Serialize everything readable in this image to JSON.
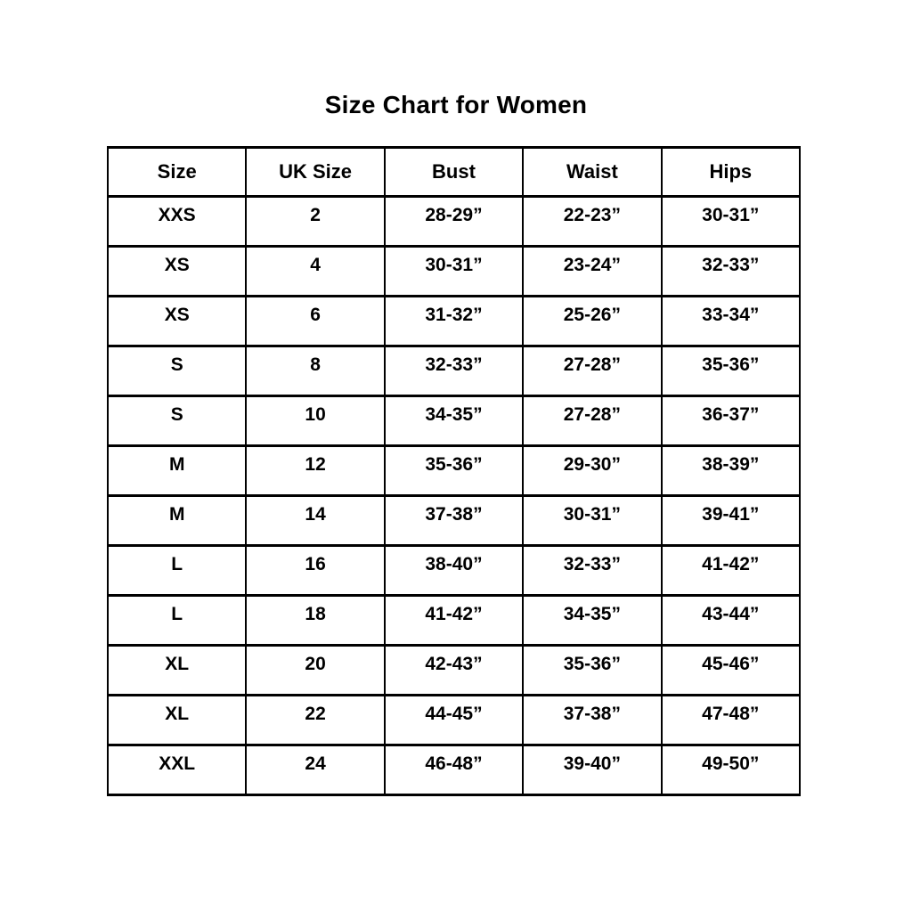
{
  "page": {
    "title": "Size Chart for Women"
  },
  "colors": {
    "background": "#ffffff",
    "text": "#000000",
    "border": "#000000"
  },
  "table": {
    "headers": [
      "Size",
      "UK Size",
      "Bust",
      "Waist",
      "Hips"
    ],
    "rows": [
      [
        "XXS",
        "2",
        "28-29”",
        "22-23”",
        "30-31”"
      ],
      [
        "XS",
        "4",
        "30-31”",
        "23-24”",
        "32-33”"
      ],
      [
        "XS",
        "6",
        "31-32”",
        "25-26”",
        "33-34”"
      ],
      [
        "S",
        "8",
        "32-33”",
        "27-28”",
        "35-36”"
      ],
      [
        "S",
        "10",
        "34-35”",
        "27-28”",
        "36-37”"
      ],
      [
        "M",
        "12",
        "35-36”",
        "29-30”",
        "38-39”"
      ],
      [
        "M",
        "14",
        "37-38”",
        "30-31”",
        "39-41”"
      ],
      [
        "L",
        "16",
        "38-40”",
        "32-33”",
        "41-42”"
      ],
      [
        "L",
        "18",
        "41-42”",
        "34-35”",
        "43-44”"
      ],
      [
        "XL",
        "20",
        "42-43”",
        "35-36”",
        "45-46”"
      ],
      [
        "XL",
        "22",
        "44-45”",
        "37-38”",
        "47-48”"
      ],
      [
        "XXL",
        "24",
        "46-48”",
        "39-40”",
        "49-50”"
      ]
    ]
  },
  "chart_data": {
    "type": "table",
    "title": "Size Chart for Women",
    "columns": [
      "Size",
      "UK Size",
      "Bust",
      "Waist",
      "Hips"
    ],
    "rows": [
      [
        "XXS",
        "2",
        "28-29”",
        "22-23”",
        "30-31”"
      ],
      [
        "XS",
        "4",
        "30-31”",
        "23-24”",
        "32-33”"
      ],
      [
        "XS",
        "6",
        "31-32”",
        "25-26”",
        "33-34”"
      ],
      [
        "S",
        "8",
        "32-33”",
        "27-28”",
        "35-36”"
      ],
      [
        "S",
        "10",
        "34-35”",
        "27-28”",
        "36-37”"
      ],
      [
        "M",
        "12",
        "35-36”",
        "29-30”",
        "38-39”"
      ],
      [
        "M",
        "14",
        "37-38”",
        "30-31”",
        "39-41”"
      ],
      [
        "L",
        "16",
        "38-40”",
        "32-33”",
        "41-42”"
      ],
      [
        "L",
        "18",
        "41-42”",
        "34-35”",
        "43-44”"
      ],
      [
        "XL",
        "20",
        "42-43”",
        "35-36”",
        "45-46”"
      ],
      [
        "XL",
        "22",
        "44-45”",
        "37-38”",
        "47-48”"
      ],
      [
        "XXL",
        "24",
        "46-48”",
        "39-40”",
        "49-50”"
      ]
    ]
  }
}
